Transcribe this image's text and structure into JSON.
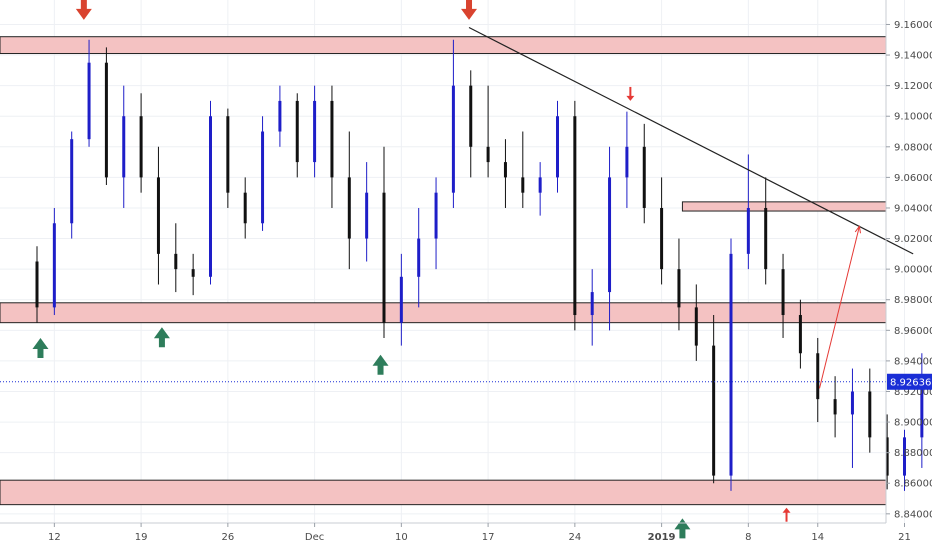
{
  "chart_data": {
    "type": "candlestick",
    "title": "",
    "y_axis": {
      "min": 8.834,
      "max": 9.176,
      "ticks": [
        "9.16000",
        "9.14000",
        "9.12000",
        "9.10000",
        "9.08000",
        "9.06000",
        "9.04000",
        "9.02000",
        "9.00000",
        "8.98000",
        "8.96000",
        "8.94000",
        "8.92000",
        "8.90000",
        "8.88000",
        "8.86000",
        "8.84000"
      ]
    },
    "x_axis": {
      "ticks": [
        {
          "label": "12",
          "bar": 1,
          "bold": false
        },
        {
          "label": "19",
          "bar": 6,
          "bold": false
        },
        {
          "label": "26",
          "bar": 11,
          "bold": false
        },
        {
          "label": "Dec",
          "bar": 16,
          "bold": false
        },
        {
          "label": "10",
          "bar": 21,
          "bold": false
        },
        {
          "label": "17",
          "bar": 26,
          "bold": false
        },
        {
          "label": "24",
          "bar": 31,
          "bold": false
        },
        {
          "label": "2019",
          "bar": 36,
          "bold": true
        },
        {
          "label": "8",
          "bar": 41,
          "bold": false
        },
        {
          "label": "14",
          "bar": 45,
          "bold": false
        },
        {
          "label": "21",
          "bar": 50,
          "bold": false
        }
      ]
    },
    "current_price": {
      "value": 8.92636,
      "label": "8.92636"
    },
    "colors": {
      "up": "#1e1ec8",
      "down": "#111111",
      "zone_fill": "#f4c2c2",
      "zone_stroke": "#222222",
      "arrow_down": "#d9432f",
      "arrow_up": "#2e7d5b",
      "red": "#e53935",
      "price_tag": "#1a2ed6"
    },
    "zones": [
      {
        "low": 9.141,
        "high": 9.152
      },
      {
        "low": 9.038,
        "high": 9.044
      },
      {
        "low": 8.965,
        "high": 8.978
      },
      {
        "low": 8.846,
        "high": 8.862
      }
    ],
    "trendline": {
      "from": {
        "bar": 24.9,
        "price": 9.158
      },
      "to": {
        "bar": 50.5,
        "price": 9.01
      }
    },
    "projection": {
      "from": {
        "bar": 45.1,
        "price": 8.922
      },
      "to": {
        "bar": 47.4,
        "price": 9.028
      }
    },
    "down_arrows_big": [
      {
        "bar": 2.7,
        "price": 9.163
      },
      {
        "bar": 24.9,
        "price": 9.163
      }
    ],
    "down_arrows_small": [
      {
        "bar": 34.2,
        "price": 9.11
      }
    ],
    "up_arrows_big": [
      {
        "bar": 0.2,
        "price": 8.955
      },
      {
        "bar": 7.2,
        "price": 8.962
      },
      {
        "bar": 19.8,
        "price": 8.944
      },
      {
        "bar": 37.2,
        "price": 8.837
      }
    ],
    "up_arrows_small": [
      {
        "bar": 43.2,
        "price": 8.844
      }
    ],
    "candles": [
      [
        9.005,
        9.015,
        8.965,
        8.975
      ],
      [
        8.975,
        9.04,
        8.97,
        9.03
      ],
      [
        9.03,
        9.09,
        9.02,
        9.085
      ],
      [
        9.085,
        9.15,
        9.08,
        9.135
      ],
      [
        9.135,
        9.145,
        9.055,
        9.06
      ],
      [
        9.06,
        9.12,
        9.04,
        9.1
      ],
      [
        9.1,
        9.115,
        9.05,
        9.06
      ],
      [
        9.06,
        9.08,
        8.99,
        9.01
      ],
      [
        9.01,
        9.03,
        8.985,
        9.0
      ],
      [
        9.0,
        9.01,
        8.983,
        8.995
      ],
      [
        8.995,
        9.11,
        8.99,
        9.1
      ],
      [
        9.1,
        9.105,
        9.04,
        9.05
      ],
      [
        9.05,
        9.06,
        9.02,
        9.03
      ],
      [
        9.03,
        9.1,
        9.025,
        9.09
      ],
      [
        9.09,
        9.12,
        9.08,
        9.11
      ],
      [
        9.11,
        9.115,
        9.06,
        9.07
      ],
      [
        9.07,
        9.12,
        9.06,
        9.11
      ],
      [
        9.11,
        9.12,
        9.04,
        9.06
      ],
      [
        9.06,
        9.09,
        9.0,
        9.02
      ],
      [
        9.02,
        9.07,
        9.005,
        9.05
      ],
      [
        9.05,
        9.08,
        8.955,
        8.965
      ],
      [
        8.965,
        9.01,
        8.95,
        8.995
      ],
      [
        8.995,
        9.04,
        8.975,
        9.02
      ],
      [
        9.02,
        9.06,
        9.0,
        9.05
      ],
      [
        9.05,
        9.15,
        9.04,
        9.12
      ],
      [
        9.12,
        9.13,
        9.06,
        9.08
      ],
      [
        9.08,
        9.12,
        9.06,
        9.07
      ],
      [
        9.07,
        9.085,
        9.04,
        9.06
      ],
      [
        9.06,
        9.09,
        9.04,
        9.05
      ],
      [
        9.05,
        9.07,
        9.035,
        9.06
      ],
      [
        9.06,
        9.11,
        9.05,
        9.1
      ],
      [
        9.1,
        9.11,
        8.96,
        8.97
      ],
      [
        8.97,
        9.0,
        8.95,
        8.985
      ],
      [
        8.985,
        9.08,
        8.96,
        9.06
      ],
      [
        9.06,
        9.103,
        9.04,
        9.08
      ],
      [
        9.08,
        9.095,
        9.03,
        9.04
      ],
      [
        9.04,
        9.06,
        8.99,
        9.0
      ],
      [
        9.0,
        9.02,
        8.96,
        8.975
      ],
      [
        8.975,
        8.99,
        8.94,
        8.95
      ],
      [
        8.95,
        8.97,
        8.86,
        8.865
      ],
      [
        8.865,
        9.02,
        8.855,
        9.01
      ],
      [
        9.01,
        9.075,
        9.0,
        9.04
      ],
      [
        9.04,
        9.06,
        8.99,
        9.0
      ],
      [
        9.0,
        9.01,
        8.955,
        8.97
      ],
      [
        8.97,
        8.98,
        8.935,
        8.945
      ],
      [
        8.945,
        8.955,
        8.9,
        8.915
      ],
      [
        8.915,
        8.93,
        8.89,
        8.905
      ],
      [
        8.905,
        8.935,
        8.87,
        8.92
      ],
      [
        8.92,
        8.935,
        8.88,
        8.89
      ],
      [
        8.89,
        8.905,
        8.856,
        8.865
      ],
      [
        8.865,
        8.895,
        8.855,
        8.89
      ],
      [
        8.89,
        8.945,
        8.87,
        8.93
      ]
    ]
  }
}
